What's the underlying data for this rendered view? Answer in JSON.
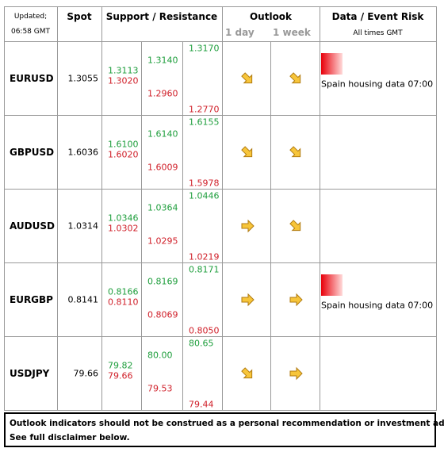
{
  "header": {
    "updated": "Updated;",
    "time": "06:58 GMT",
    "spot": "Spot",
    "support_resistance": "Support / Resistance",
    "outlook": "Outlook",
    "day": "1 day",
    "week": "1 week",
    "event_risk": "Data / Event Risk",
    "times": "All times GMT"
  },
  "rows": [
    {
      "pair": "EURUSD",
      "spot": "1.3055",
      "levels": [
        [
          "1.3113",
          "1.3020"
        ],
        [
          "1.3140",
          "1.2960"
        ],
        [
          "1.3170",
          "1.2770"
        ]
      ],
      "outlook": [
        "down",
        "down"
      ],
      "event": "Spain housing data 07:00"
    },
    {
      "pair": "GBPUSD",
      "spot": "1.6036",
      "levels": [
        [
          "1.6100",
          "1.6020"
        ],
        [
          "1.6140",
          "1.6009"
        ],
        [
          "1.6155",
          "1.5978"
        ]
      ],
      "outlook": [
        "down",
        "down"
      ],
      "event": null
    },
    {
      "pair": "AUDUSD",
      "spot": "1.0314",
      "levels": [
        [
          "1.0346",
          "1.0302"
        ],
        [
          "1.0364",
          "1.0295"
        ],
        [
          "1.0446",
          "1.0219"
        ]
      ],
      "outlook": [
        "right",
        "down"
      ],
      "event": null
    },
    {
      "pair": "EURGBP",
      "spot": "0.8141",
      "levels": [
        [
          "0.8166",
          "0.8110"
        ],
        [
          "0.8169",
          "0.8069"
        ],
        [
          "0.8171",
          "0.8050"
        ]
      ],
      "outlook": [
        "right",
        "right"
      ],
      "event": "Spain housing data 07:00"
    },
    {
      "pair": "USDJPY",
      "spot": "79.66",
      "levels": [
        [
          "79.82",
          "79.66"
        ],
        [
          "80.00",
          "79.53"
        ],
        [
          "80.65",
          "79.44"
        ]
      ],
      "outlook": [
        "down",
        "right"
      ],
      "event": null
    }
  ],
  "disclaimer": [
    "Outlook indicators should not be construed as a personal recommendation or investment advice.",
    "See full disclaimer below."
  ]
}
